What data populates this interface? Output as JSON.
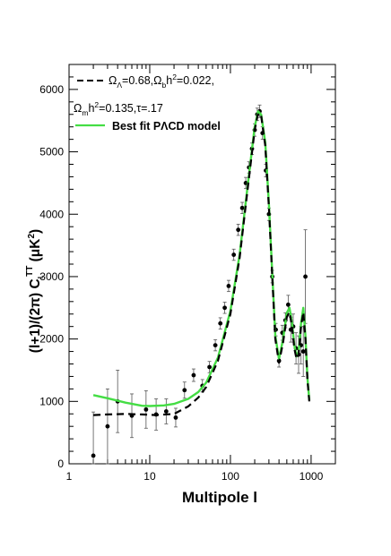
{
  "chart_data": {
    "type": "line",
    "title": "",
    "xscale": "log",
    "xlim": [
      1,
      2000
    ],
    "ylim": [
      0,
      6400
    ],
    "grid": false,
    "legend_position": "top-left",
    "xlabel": "Multipole l",
    "ylabel": "(l+1)/(2π) C_l^TT (μK²)",
    "x_ticks": [
      1,
      10,
      100,
      1000
    ],
    "x_tick_labels": [
      "1",
      "10",
      "100",
      "1000"
    ],
    "y_ticks": [
      0,
      1000,
      2000,
      3000,
      4000,
      5000,
      6000
    ],
    "y_tick_labels": [
      "0",
      "1000",
      "2000",
      "3000",
      "4000",
      "5000",
      "6000"
    ],
    "series": [
      {
        "name": "Ω_Λ=0.68,Ω_b h²=0.022, Ω_m h²=0.135,τ=.17",
        "style": "dashed",
        "color": "#000000",
        "x": [
          2,
          3,
          5,
          8,
          12,
          20,
          30,
          40,
          50,
          70,
          100,
          130,
          160,
          200,
          220,
          240,
          270,
          300,
          330,
          360,
          400,
          450,
          500,
          540,
          580,
          620,
          660,
          700,
          750,
          800,
          850,
          900,
          950
        ],
        "y": [
          780,
          790,
          800,
          790,
          780,
          800,
          920,
          1060,
          1230,
          1650,
          2400,
          3300,
          4300,
          5350,
          5620,
          5580,
          5100,
          4100,
          3000,
          2000,
          1620,
          1950,
          2350,
          2430,
          2200,
          1850,
          1680,
          1760,
          2200,
          2430,
          2000,
          1350,
          1000
        ]
      },
      {
        "name": "Best fit PΛCD model",
        "style": "solid",
        "color": "#44dd44",
        "x": [
          2,
          3,
          5,
          8,
          10,
          15,
          20,
          30,
          40,
          50,
          70,
          100,
          130,
          160,
          200,
          220,
          240,
          270,
          300,
          330,
          360,
          400,
          450,
          500,
          540,
          580,
          620,
          660,
          700,
          750,
          800,
          850,
          900,
          950
        ],
        "y": [
          1100,
          1050,
          980,
          930,
          925,
          935,
          960,
          1040,
          1150,
          1300,
          1700,
          2450,
          3350,
          4350,
          5400,
          5650,
          5600,
          5150,
          4150,
          3050,
          2050,
          1680,
          2000,
          2420,
          2500,
          2260,
          1900,
          1720,
          1800,
          2250,
          2500,
          2050,
          1380,
          1020
        ]
      }
    ],
    "observations": {
      "x": [
        2,
        3,
        4,
        6,
        9,
        12,
        16,
        21,
        27,
        35,
        45,
        55,
        65,
        75,
        85,
        95,
        110,
        125,
        140,
        155,
        170,
        185,
        200,
        215,
        230,
        250,
        275,
        300,
        330,
        365,
        400,
        440,
        480,
        520,
        560,
        600,
        650,
        700,
        750,
        800,
        850
      ],
      "y": [
        130,
        600,
        1000,
        770,
        870,
        790,
        840,
        740,
        1180,
        1420,
        1250,
        1550,
        1900,
        2250,
        2500,
        2850,
        3350,
        3750,
        4100,
        4500,
        4750,
        5050,
        5350,
        5600,
        5650,
        5300,
        4700,
        4000,
        3000,
        2150,
        1650,
        2100,
        2300,
        2550,
        2150,
        2200,
        1850,
        1750,
        1900,
        1800,
        3000
      ],
      "err": [
        700,
        600,
        500,
        350,
        300,
        250,
        200,
        150,
        130,
        100,
        100,
        90,
        90,
        90,
        90,
        90,
        90,
        90,
        90,
        90,
        90,
        90,
        100,
        100,
        100,
        100,
        100,
        100,
        100,
        100,
        100,
        120,
        120,
        150,
        200,
        200,
        250,
        300,
        300,
        400,
        750
      ]
    }
  }
}
